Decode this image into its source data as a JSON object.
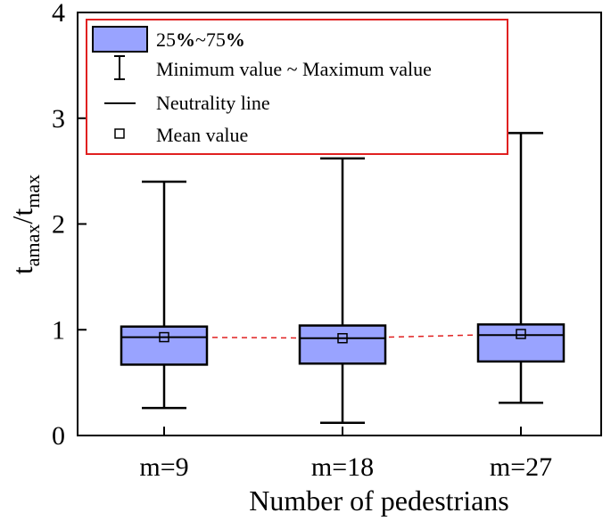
{
  "chart_data": {
    "type": "box",
    "title": "",
    "xlabel": "Number of pedestrians",
    "ylabel": {
      "main": "t",
      "sub_num": "amax",
      "sep": "/t",
      "sub_den": "max"
    },
    "ylim": [
      0,
      4
    ],
    "yticks": [
      "0",
      "1",
      "2",
      "3",
      "4"
    ],
    "categories": [
      "m=9",
      "m=18",
      "m=27"
    ],
    "boxes": [
      {
        "category": "m=9",
        "min": 0.26,
        "q1": 0.67,
        "median": 0.93,
        "q3": 1.03,
        "max": 2.4,
        "mean": 0.93
      },
      {
        "category": "m=18",
        "min": 0.12,
        "q1": 0.68,
        "median": 0.92,
        "q3": 1.04,
        "max": 2.62,
        "mean": 0.92
      },
      {
        "category": "m=27",
        "min": 0.31,
        "q1": 0.7,
        "median": 0.95,
        "q3": 1.05,
        "max": 2.86,
        "mean": 0.96
      }
    ],
    "mean_line": {
      "style": "dashed",
      "color": "#e02020"
    },
    "grid": false,
    "legend": {
      "placement": "top-left",
      "border_color": "#e02020",
      "items": [
        {
          "kind": "box",
          "prefix": "25",
          "pct1": "%",
          "mid": "~75",
          "pct2": "%"
        },
        {
          "kind": "whisker",
          "label": "Minimum value ~ Maximum value"
        },
        {
          "kind": "line",
          "label": "Neutrality line"
        },
        {
          "kind": "mean",
          "label": "Mean value"
        }
      ]
    },
    "colors": {
      "box_fill": "#99a3ff",
      "stroke": "#000000",
      "mean_line": "#e02020"
    }
  }
}
